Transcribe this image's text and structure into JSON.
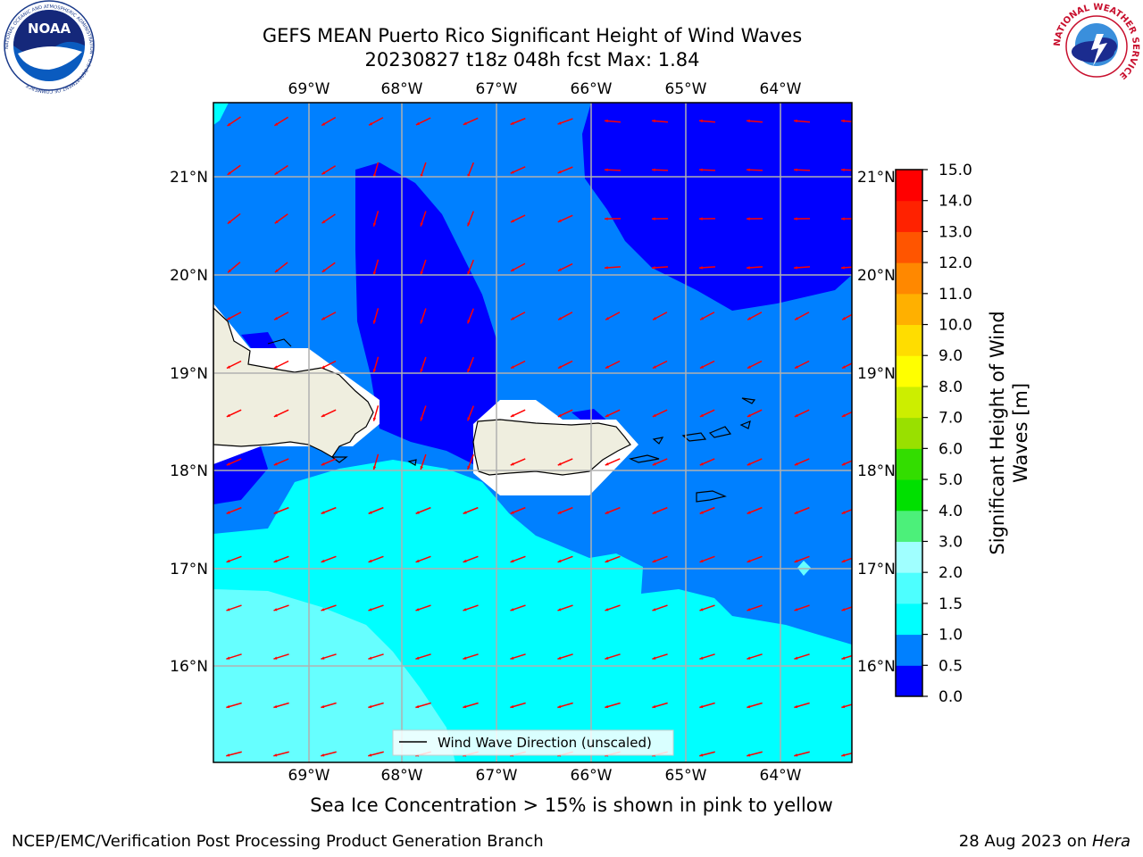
{
  "title": {
    "line1": "GEFS MEAN Puerto Rico Significant Height of Wind Waves",
    "line2": "20230827 t18z 048h fcst   Max: 1.84"
  },
  "map": {
    "lon_ticks": [
      "69°W",
      "68°W",
      "67°W",
      "66°W",
      "65°W",
      "64°W"
    ],
    "lat_ticks": [
      "21°N",
      "20°N",
      "19°N",
      "18°N",
      "17°N",
      "16°N"
    ],
    "legend_label": "Wind Wave Direction (unscaled)",
    "colors": {
      "level_0_0_5": "#0000ff",
      "level_0_5_1_0": "#0080ff",
      "level_1_0_1_5": "#00ffff",
      "level_1_5_2_0": "#66ffff",
      "land": "#efeedf",
      "arrow": "#ff0000",
      "grid": "#b0b0b0"
    }
  },
  "colorbar": {
    "label_line1": "Significant Height of Wind",
    "label_line2": "Waves [m]",
    "ticks": [
      "0.0",
      "0.5",
      "1.0",
      "1.5",
      "2.0",
      "3.0",
      "4.0",
      "5.0",
      "6.0",
      "7.0",
      "8.0",
      "9.0",
      "10.0",
      "11.0",
      "12.0",
      "13.0",
      "14.0",
      "15.0"
    ],
    "colors": [
      "#0000ff",
      "#0080ff",
      "#00ffff",
      "#4dffff",
      "#a0ffff",
      "#4cf07a",
      "#00e000",
      "#33dd00",
      "#99e000",
      "#ccee00",
      "#ffff00",
      "#ffdd00",
      "#ffb000",
      "#ff8800",
      "#ff5500",
      "#ff2200",
      "#ff0000"
    ]
  },
  "logos": {
    "noaa_text": "NOAA",
    "noaa_ring": "NATIONAL OCEANIC AND ATMOSPHERIC ADMINISTRATION · U.S. DEPARTMENT OF COMMERCE",
    "nws_ring": "NATIONAL WEATHER SERVICE"
  },
  "footer": {
    "sea_ice": "Sea Ice Concentration > 15% is shown in pink to yellow",
    "credit_left": "NCEP/EMC/Verification Post Processing Product Generation Branch",
    "credit_date": "28 Aug 2023 on ",
    "credit_machine": "Hera"
  }
}
